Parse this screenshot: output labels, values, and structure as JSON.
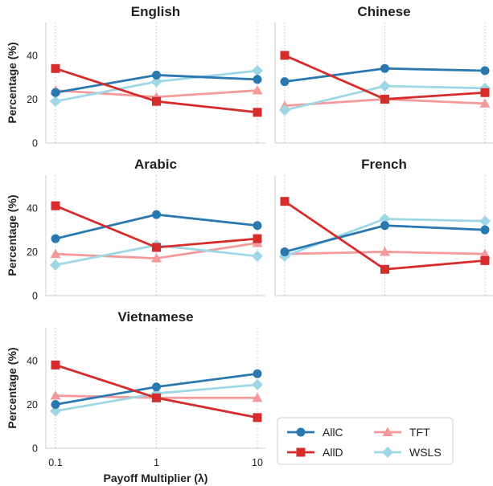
{
  "chart_data": {
    "type": "line",
    "x": [
      "0.1",
      "1",
      "10"
    ],
    "xlabel": "Payoff Multiplier (λ)",
    "ylabel": "Percentage (%)",
    "ylim": [
      0,
      55
    ],
    "yticks": [
      0,
      20,
      40
    ],
    "grid": "vertical dotted",
    "legend": {
      "placement": "bottom-right",
      "entries": [
        "AllC",
        "AllD",
        "TFT",
        "WSLS"
      ]
    },
    "colors": {
      "AllC": "#2a78b0",
      "AllD": "#d62c2c",
      "TFT": "#f59a9a",
      "WSLS": "#9ed8e6"
    },
    "markers": {
      "AllC": "circle",
      "AllD": "square",
      "TFT": "triangle",
      "WSLS": "diamond"
    },
    "panels": [
      {
        "title": "English",
        "series": [
          {
            "name": "AllC",
            "values": [
              23,
              31,
              29
            ]
          },
          {
            "name": "AllD",
            "values": [
              34,
              19,
              14
            ]
          },
          {
            "name": "TFT",
            "values": [
              24,
              21,
              24
            ]
          },
          {
            "name": "WSLS",
            "values": [
              19,
              28,
              33
            ]
          }
        ]
      },
      {
        "title": "Chinese",
        "series": [
          {
            "name": "AllC",
            "values": [
              28,
              34,
              33
            ]
          },
          {
            "name": "AllD",
            "values": [
              40,
              20,
              23
            ]
          },
          {
            "name": "TFT",
            "values": [
              17,
              20,
              18
            ]
          },
          {
            "name": "WSLS",
            "values": [
              15,
              26,
              25
            ]
          }
        ]
      },
      {
        "title": "Arabic",
        "series": [
          {
            "name": "AllC",
            "values": [
              26,
              37,
              32
            ]
          },
          {
            "name": "AllD",
            "values": [
              41,
              22,
              26
            ]
          },
          {
            "name": "TFT",
            "values": [
              19,
              17,
              24
            ]
          },
          {
            "name": "WSLS",
            "values": [
              14,
              23,
              18
            ]
          }
        ]
      },
      {
        "title": "French",
        "series": [
          {
            "name": "AllC",
            "values": [
              20,
              32,
              30
            ]
          },
          {
            "name": "AllD",
            "values": [
              43,
              12,
              16
            ]
          },
          {
            "name": "TFT",
            "values": [
              19,
              20,
              19
            ]
          },
          {
            "name": "WSLS",
            "values": [
              18,
              35,
              34
            ]
          }
        ]
      },
      {
        "title": "Vietnamese",
        "series": [
          {
            "name": "AllC",
            "values": [
              20,
              28,
              34
            ]
          },
          {
            "name": "AllD",
            "values": [
              38,
              23,
              14
            ]
          },
          {
            "name": "TFT",
            "values": [
              24,
              23,
              23
            ]
          },
          {
            "name": "WSLS",
            "values": [
              17,
              25,
              29
            ]
          }
        ]
      }
    ]
  }
}
